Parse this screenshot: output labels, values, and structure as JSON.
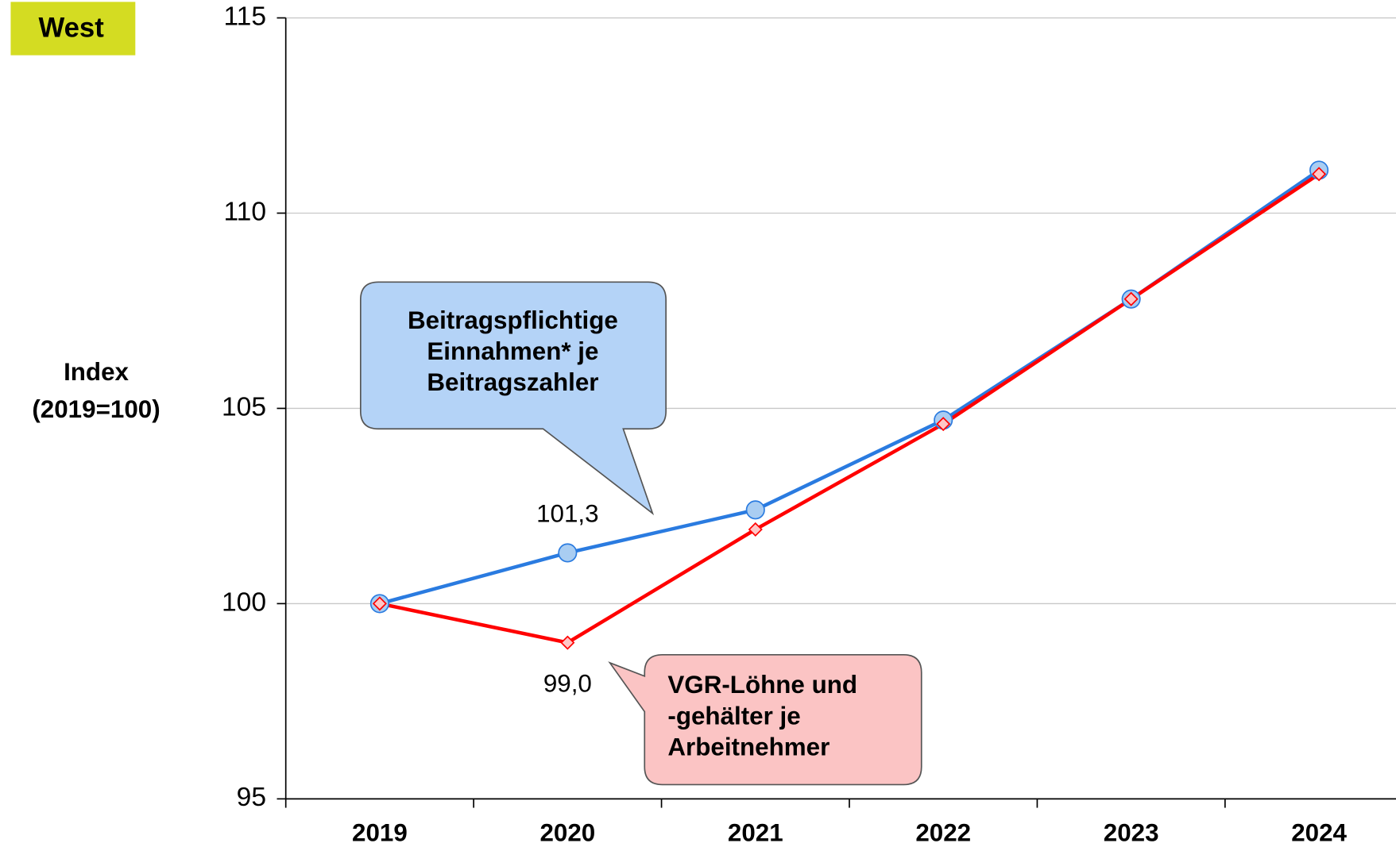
{
  "chart_data": {
    "type": "line",
    "title": "West",
    "y_label": [
      "Index",
      "(2019=100)"
    ],
    "categories": [
      "2019",
      "2020",
      "2021",
      "2022",
      "2023",
      "2024"
    ],
    "series": [
      {
        "name": "Beitragspflichtige Einnahmen* je Beitragszahler",
        "color": "#2a7be0",
        "marker": "circle",
        "values": [
          100,
          101.3,
          102.4,
          104.7,
          107.8,
          111.1
        ],
        "value_labels": [
          null,
          "101,3",
          null,
          null,
          null,
          null
        ]
      },
      {
        "name": "VGR-Löhne und -gehälter je Arbeitnehmer",
        "color": "#ff0000",
        "marker": "diamond",
        "values": [
          100,
          99.0,
          101.9,
          104.6,
          107.8,
          111.0
        ],
        "value_labels": [
          null,
          "99,0",
          null,
          null,
          null,
          null
        ]
      }
    ],
    "ylim": [
      95,
      115
    ],
    "yticks": [
      95,
      100,
      105,
      110,
      115
    ],
    "grid": true
  }
}
